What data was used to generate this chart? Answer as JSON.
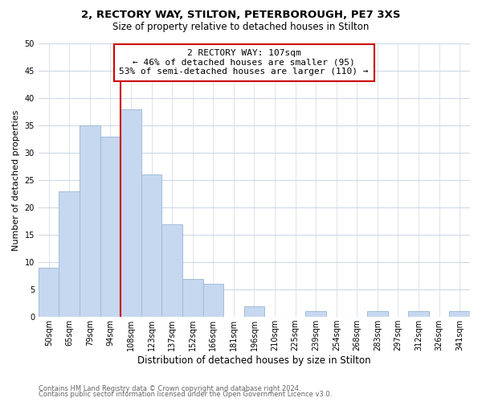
{
  "title1": "2, RECTORY WAY, STILTON, PETERBOROUGH, PE7 3XS",
  "title2": "Size of property relative to detached houses in Stilton",
  "xlabel": "Distribution of detached houses by size in Stilton",
  "ylabel": "Number of detached properties",
  "bar_labels": [
    "50sqm",
    "65sqm",
    "79sqm",
    "94sqm",
    "108sqm",
    "123sqm",
    "137sqm",
    "152sqm",
    "166sqm",
    "181sqm",
    "196sqm",
    "210sqm",
    "225sqm",
    "239sqm",
    "254sqm",
    "268sqm",
    "283sqm",
    "297sqm",
    "312sqm",
    "326sqm",
    "341sqm"
  ],
  "bar_values": [
    9,
    23,
    35,
    33,
    38,
    26,
    17,
    7,
    6,
    0,
    2,
    0,
    0,
    1,
    0,
    0,
    1,
    0,
    1,
    0,
    1
  ],
  "bar_color": "#c5d8f0",
  "bar_edge_color": "#a0bcd8",
  "vline_color": "#cc0000",
  "annotation_title": "2 RECTORY WAY: 107sqm",
  "annotation_line1": "← 46% of detached houses are smaller (95)",
  "annotation_line2": "53% of semi-detached houses are larger (110) →",
  "annotation_box_color": "#ffffff",
  "annotation_box_edge": "#cc0000",
  "ylim": [
    0,
    50
  ],
  "yticks": [
    0,
    5,
    10,
    15,
    20,
    25,
    30,
    35,
    40,
    45,
    50
  ],
  "footnote1": "Contains HM Land Registry data © Crown copyright and database right 2024.",
  "footnote2": "Contains public sector information licensed under the Open Government Licence v3.0.",
  "bg_color": "#ffffff",
  "grid_color": "#cdd9e8",
  "title1_fontsize": 9.5,
  "title2_fontsize": 8.5,
  "ylabel_fontsize": 8,
  "xlabel_fontsize": 8.5,
  "tick_fontsize": 7,
  "annot_fontsize": 8,
  "footnote_fontsize": 6
}
